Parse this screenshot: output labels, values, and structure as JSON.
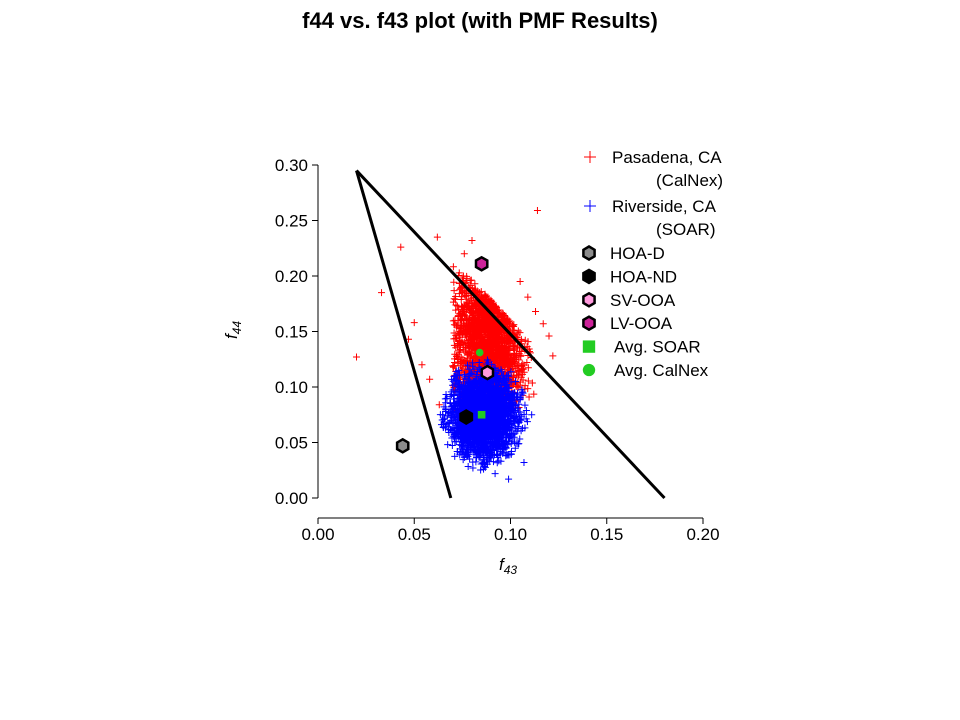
{
  "chart_data": {
    "type": "scatter",
    "title": "f44 vs. f43 plot (with PMF Results)",
    "xlabel": {
      "base": "f",
      "sub": "43"
    },
    "ylabel": {
      "base": "f",
      "sub": "44"
    },
    "xlim": [
      0.0,
      0.2
    ],
    "ylim": [
      0.0,
      0.3
    ],
    "xticks": [
      "0.00",
      "0.05",
      "0.10",
      "0.15",
      "0.20"
    ],
    "yticks": [
      "0.00",
      "0.05",
      "0.10",
      "0.15",
      "0.20",
      "0.25",
      "0.30"
    ],
    "grid": false,
    "legend_position": "top-right",
    "triangle_lines": [
      {
        "x": [
          0.02,
          0.069
        ],
        "y": [
          0.295,
          0.0
        ]
      },
      {
        "x": [
          0.02,
          0.18
        ],
        "y": [
          0.295,
          0.0
        ]
      }
    ],
    "series": [
      {
        "name": "Pasadena, CA",
        "name_line2": "(CalNex)",
        "marker": "plus",
        "color": "#ff0000",
        "cloud": {
          "x_range": [
            0.075,
            0.11
          ],
          "y_range": [
            0.08,
            0.21
          ],
          "shape": "triangle-edge"
        },
        "points": [
          {
            "x": 0.02,
            "y": 0.127
          },
          {
            "x": 0.043,
            "y": 0.226
          },
          {
            "x": 0.033,
            "y": 0.185
          },
          {
            "x": 0.05,
            "y": 0.158
          },
          {
            "x": 0.047,
            "y": 0.143
          },
          {
            "x": 0.054,
            "y": 0.12
          },
          {
            "x": 0.058,
            "y": 0.107
          },
          {
            "x": 0.063,
            "y": 0.084
          },
          {
            "x": 0.114,
            "y": 0.259
          },
          {
            "x": 0.12,
            "y": 0.146
          },
          {
            "x": 0.117,
            "y": 0.157
          },
          {
            "x": 0.113,
            "y": 0.168
          },
          {
            "x": 0.122,
            "y": 0.128
          },
          {
            "x": 0.109,
            "y": 0.181
          },
          {
            "x": 0.105,
            "y": 0.195
          },
          {
            "x": 0.062,
            "y": 0.235
          },
          {
            "x": 0.08,
            "y": 0.232
          },
          {
            "x": 0.076,
            "y": 0.22
          }
        ]
      },
      {
        "name": "Riverside, CA",
        "name_line2": "(SOAR)",
        "marker": "plus",
        "color": "#0000ff",
        "cloud": {
          "x_range": [
            0.064,
            0.112
          ],
          "y_range": [
            0.03,
            0.13
          ],
          "shape": "ellipse"
        },
        "points": [
          {
            "x": 0.099,
            "y": 0.017
          },
          {
            "x": 0.092,
            "y": 0.022
          },
          {
            "x": 0.086,
            "y": 0.026
          },
          {
            "x": 0.107,
            "y": 0.032
          },
          {
            "x": 0.111,
            "y": 0.075
          }
        ]
      }
    ],
    "pmf_factors": [
      {
        "name": "HOA-D",
        "x": 0.044,
        "y": 0.047,
        "shape": "hexagon",
        "fill": "#8c8c8c",
        "stroke": "#000000"
      },
      {
        "name": "HOA-ND",
        "x": 0.077,
        "y": 0.073,
        "shape": "hexagon",
        "fill": "#000000",
        "stroke": "#000000"
      },
      {
        "name": "SV-OOA",
        "x": 0.088,
        "y": 0.113,
        "shape": "hexagon",
        "fill": "#ff99dd",
        "stroke": "#000000"
      },
      {
        "name": "LV-OOA",
        "x": 0.085,
        "y": 0.211,
        "shape": "hexagon",
        "fill": "#cc2299",
        "stroke": "#000000"
      },
      {
        "name": "Avg. SOAR",
        "x": 0.085,
        "y": 0.075,
        "shape": "square",
        "fill": "#22cc22",
        "stroke": "#22cc22"
      },
      {
        "name": "Avg. CalNex",
        "x": 0.084,
        "y": 0.131,
        "shape": "circle",
        "fill": "#22cc22",
        "stroke": "#22cc22"
      }
    ]
  }
}
